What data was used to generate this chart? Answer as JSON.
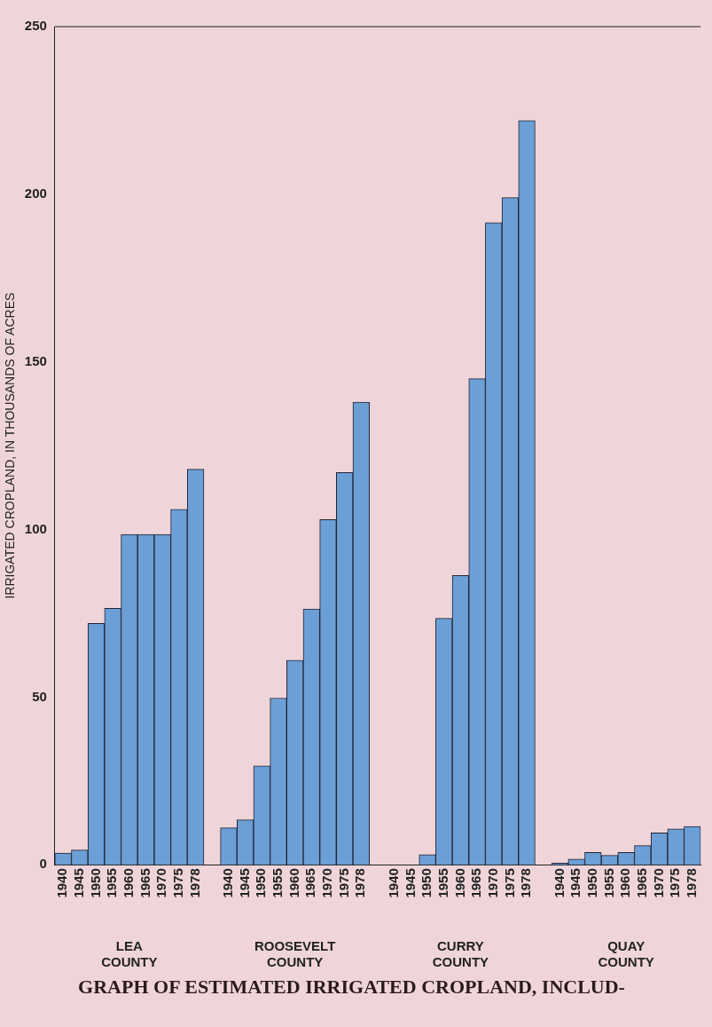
{
  "chart_data": {
    "type": "bar",
    "title": "GRAPH OF ESTIMATED IRRIGATED CROPLAND, INCLUD-",
    "ylabel": "IRRIGATED CROPLAND, IN THOUSANDS OF ACRES",
    "categories": [
      "1940",
      "1945",
      "1950",
      "1955",
      "1960",
      "1965",
      "1970",
      "1975",
      "1978",
      null,
      "1940",
      "1945",
      "1950",
      "1955",
      "1960",
      "1965",
      "1970",
      "1975",
      "1978",
      null,
      "1940",
      "1945",
      "1950",
      "1955",
      "1960",
      "1965",
      "1970",
      "1975",
      "1978",
      null,
      "1940",
      "1945",
      "1950",
      "1955",
      "1960",
      "1965",
      "1970",
      "1975",
      "1978"
    ],
    "values": [
      3.5,
      4.4,
      72,
      76.5,
      98.5,
      98.5,
      98.5,
      106,
      118,
      null,
      11,
      13.4,
      29.5,
      49.7,
      61,
      76.3,
      103,
      117,
      138,
      null,
      0,
      0,
      3,
      73.5,
      86.3,
      145,
      191.5,
      199,
      222,
      null,
      0.5,
      1.7,
      3.7,
      2.8,
      3.7,
      5.7,
      9.5,
      10.7,
      11.4
    ],
    "color": "#6b9fd6",
    "ylim": [
      0,
      250
    ],
    "yticks": [
      0,
      50,
      100,
      150,
      200,
      250
    ],
    "grid": false,
    "legend": false,
    "annotations": [
      "LEA COUNTY",
      "ROOSEVELT COUNTY",
      "CURRY COUNTY",
      "QUAY COUNTY"
    ]
  }
}
